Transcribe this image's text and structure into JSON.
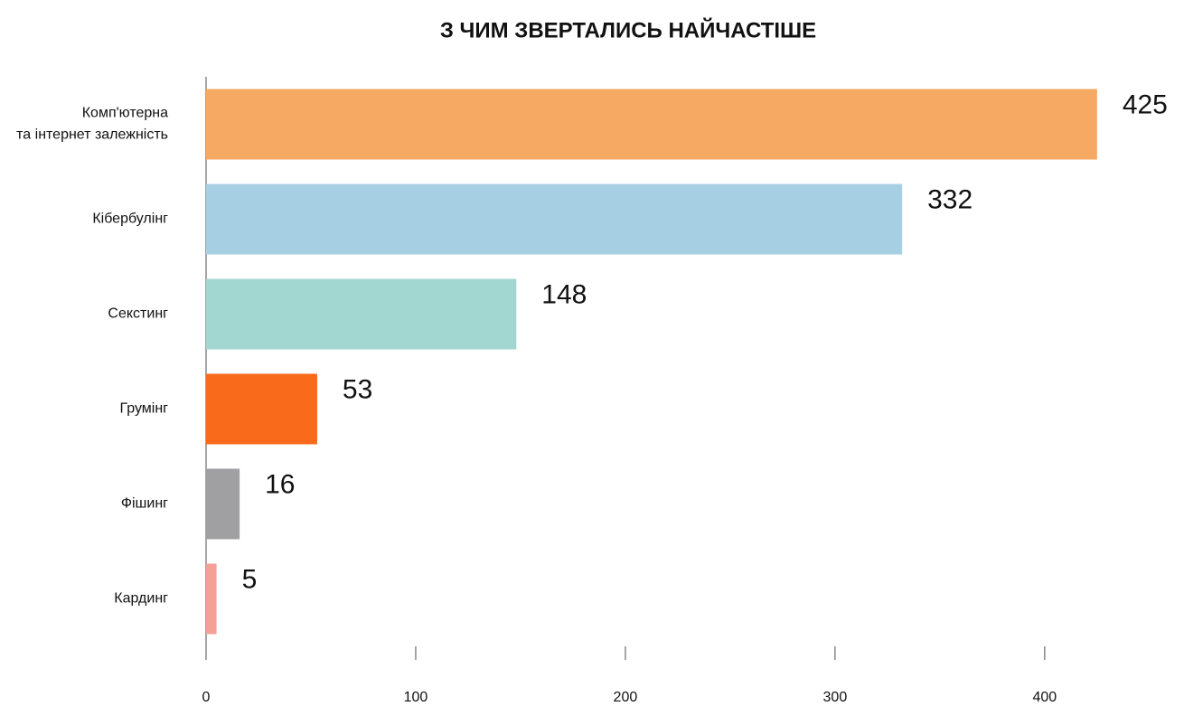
{
  "chart_data": {
    "type": "hbar",
    "title": "З ЧИМ ЗВЕРТАЛИСЬ НАЙЧАСТІШЕ",
    "categories": [
      "Комп'ютерна\nта інтернет залежність",
      "Кібербулінг",
      "Секстинг",
      "Грумінг",
      "Фішинг",
      "Кардинг"
    ],
    "values": [
      425,
      332,
      148,
      53,
      16,
      5
    ],
    "colors": [
      "#f6a963",
      "#a6cfe3",
      "#a2d6d0",
      "#f96a1a",
      "#a0a0a2",
      "#f4a097"
    ],
    "xlim": [
      0,
      460
    ],
    "xticks": [
      0,
      100,
      200,
      300,
      400
    ]
  }
}
